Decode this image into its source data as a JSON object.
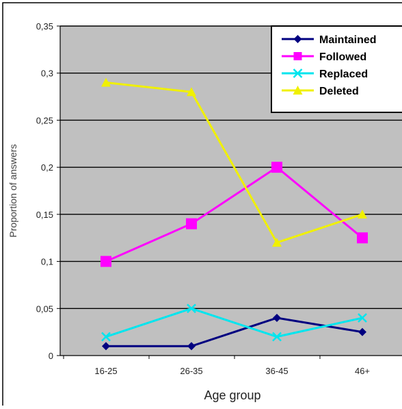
{
  "chart_data": {
    "type": "line",
    "categories": [
      "16-25",
      "26-35",
      "36-45",
      "46+"
    ],
    "series": [
      {
        "name": "Maintained",
        "color": "#000080",
        "marker": "diamond",
        "values": [
          0.01,
          0.01,
          0.04,
          0.025
        ]
      },
      {
        "name": "Followed",
        "color": "#ff00ff",
        "marker": "square",
        "values": [
          0.1,
          0.14,
          0.2,
          0.125
        ]
      },
      {
        "name": "Replaced",
        "color": "#00e5ee",
        "marker": "x",
        "values": [
          0.02,
          0.05,
          0.02,
          0.04
        ]
      },
      {
        "name": "Deleted",
        "color": "#f0f000",
        "marker": "triangle",
        "values": [
          0.29,
          0.28,
          0.12,
          0.15
        ]
      }
    ],
    "xlabel": "Age group",
    "ylabel": "Proportion of answers",
    "ylim": [
      0,
      0.35
    ],
    "yticks": [
      0,
      0.05,
      0.1,
      0.15,
      0.2,
      0.25,
      0.3,
      0.35
    ],
    "ytick_labels": [
      "0",
      "0,05",
      "0,1",
      "0,15",
      "0,2",
      "0,25",
      "0,3",
      "0,35"
    ],
    "grid": true,
    "legend_position": "top-right",
    "plot_background": "#c0c0c0"
  }
}
